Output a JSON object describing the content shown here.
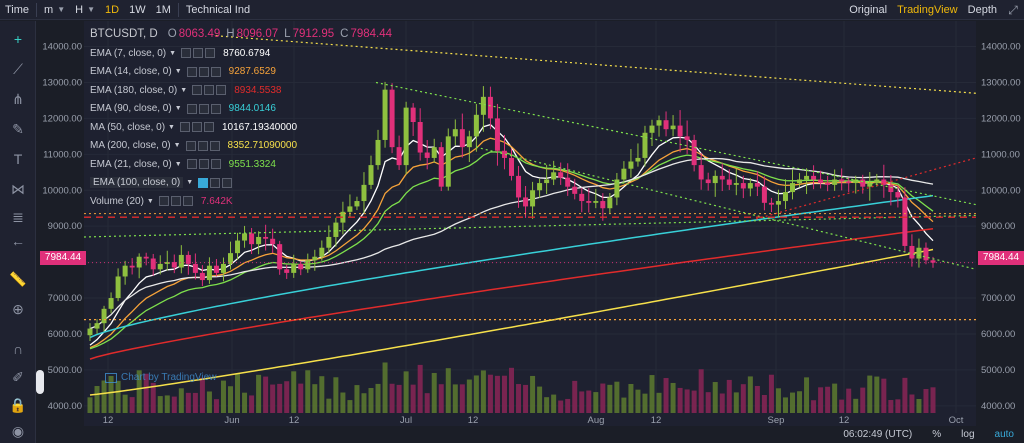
{
  "toolbar": {
    "time_label": "Time",
    "minute_label": "m",
    "hour_label": "H",
    "intervals": [
      "1D",
      "1W",
      "1M"
    ],
    "active_interval": "1D",
    "technical": "Technical Ind",
    "views": [
      "Original",
      "TradingView",
      "Depth"
    ],
    "active_view": "TradingView"
  },
  "legend": {
    "symbol": "BTCUSDT, D",
    "open_label": "O",
    "open": "8063.49",
    "high_label": "H",
    "high": "8096.07",
    "low_label": "L",
    "low": "7912.95",
    "close_label": "C",
    "close": "7984.44",
    "indicators": [
      {
        "name": "EMA (7, close, 0)",
        "value": "8760.6794",
        "color": "#ffffff"
      },
      {
        "name": "EMA (14, close, 0)",
        "value": "9287.6529",
        "color": "#f7a33a"
      },
      {
        "name": "EMA (180, close, 0)",
        "value": "8934.5538",
        "color": "#e02b2b"
      },
      {
        "name": "EMA (90, close, 0)",
        "value": "9844.0146",
        "color": "#38d0d8"
      },
      {
        "name": "MA (50, close, 0)",
        "value": "10167.19340000",
        "color": "#ffffff"
      },
      {
        "name": "MA (200, close, 0)",
        "value": "8352.71090000",
        "color": "#f6e04b"
      },
      {
        "name": "EMA (21, close, 0)",
        "value": "9551.3324",
        "color": "#7ee04c"
      },
      {
        "name": "EMA (100, close, 0)",
        "value": "",
        "color": "#c8ccd6"
      },
      {
        "name": "Volume (20)",
        "value": "7.642K",
        "color": "#e0307a"
      }
    ]
  },
  "watermark": "Chart by TradingView",
  "bottom": {
    "time": "06:02:49 (UTC)",
    "percent": "%",
    "log": "log",
    "auto": "auto"
  },
  "colors": {
    "bg": "#1b1e27",
    "up": "#8fc03f",
    "down": "#e0307a",
    "price_tag": "#e0307a"
  },
  "chart_data": {
    "type": "candlestick",
    "symbol": "BTCUSDT",
    "interval": "1D",
    "y_ticks": [
      4000.0,
      5000.0,
      6000.0,
      7000.0,
      8000.0,
      9000.0,
      10000.0,
      11000.0,
      12000.0,
      13000.0,
      14000.0
    ],
    "ylim": [
      3800,
      14600
    ],
    "x_ticks": [
      "12",
      "Jun",
      "12",
      "Jul",
      "12",
      "Aug",
      "12",
      "Sep",
      "12",
      "Oct"
    ],
    "last_price": "7984.44",
    "closes": [
      6150,
      6300,
      6700,
      7000,
      7600,
      7900,
      7850,
      8150,
      8100,
      7800,
      7950,
      8000,
      7850,
      8200,
      7950,
      7700,
      7500,
      7900,
      7700,
      7950,
      8250,
      8600,
      8800,
      8500,
      8700,
      8650,
      8500,
      7800,
      7700,
      7950,
      7800,
      8050,
      8150,
      8400,
      8700,
      9100,
      9400,
      9550,
      9700,
      10150,
      10700,
      11400,
      12800,
      11200,
      10700,
      12300,
      11900,
      11050,
      10900,
      11200,
      10100,
      11500,
      11700,
      11200,
      11500,
      12100,
      12600,
      12000,
      11100,
      10900,
      10400,
      9800,
      9550,
      10000,
      10200,
      10300,
      10500,
      10350,
      10100,
      9900,
      9700,
      9650,
      9700,
      9500,
      9800,
      10300,
      10600,
      10800,
      10900,
      11600,
      11800,
      11950,
      11700,
      11800,
      11500,
      11400,
      10700,
      10300,
      10200,
      10400,
      10300,
      10150,
      10200,
      10050,
      10200,
      10100,
      9650,
      9600,
      9700,
      9950,
      10200,
      10300,
      10400,
      10300,
      10200,
      10150,
      10300,
      10250,
      10200,
      10300,
      10100,
      10200,
      10300,
      10150,
      9950,
      9800,
      8450,
      8100,
      8400,
      8050,
      7984
    ],
    "volume_note": "Volume (20) last 7.642K"
  }
}
